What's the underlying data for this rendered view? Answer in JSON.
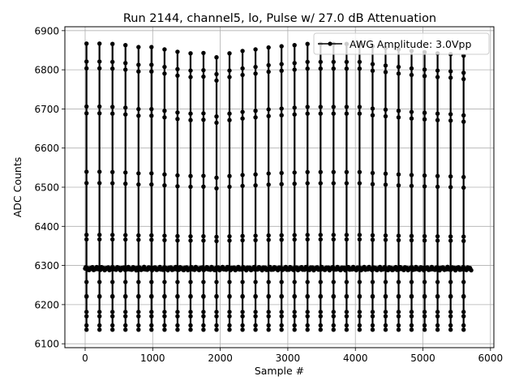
{
  "chart_data": {
    "type": "line",
    "title": "Run 2144, channel5, lo, Pulse w/ 27.0 dB Attenuation",
    "xlabel": "Sample #",
    "ylabel": "ADC Counts",
    "xlim": [
      -300,
      6050
    ],
    "ylim": [
      6090,
      6910
    ],
    "xticks": [
      0,
      1000,
      2000,
      3000,
      4000,
      5000,
      6000
    ],
    "yticks": [
      6100,
      6200,
      6300,
      6400,
      6500,
      6600,
      6700,
      6800,
      6900
    ],
    "grid": true,
    "legend_position": "top-right",
    "baseline": 6292,
    "pulse_period": 192.5,
    "pulses": [
      {
        "x": 20,
        "peak": 6867
      },
      {
        "x": 212,
        "peak": 6867
      },
      {
        "x": 405,
        "peak": 6866
      },
      {
        "x": 597,
        "peak": 6863
      },
      {
        "x": 790,
        "peak": 6858
      },
      {
        "x": 982,
        "peak": 6858
      },
      {
        "x": 1175,
        "peak": 6852
      },
      {
        "x": 1367,
        "peak": 6846
      },
      {
        "x": 1560,
        "peak": 6842
      },
      {
        "x": 1752,
        "peak": 6843
      },
      {
        "x": 1945,
        "peak": 6832
      },
      {
        "x": 2137,
        "peak": 6842
      },
      {
        "x": 2330,
        "peak": 6848
      },
      {
        "x": 2522,
        "peak": 6852
      },
      {
        "x": 2715,
        "peak": 6857
      },
      {
        "x": 2907,
        "peak": 6860
      },
      {
        "x": 3100,
        "peak": 6863
      },
      {
        "x": 3292,
        "peak": 6866
      },
      {
        "x": 3485,
        "peak": 6866
      },
      {
        "x": 3677,
        "peak": 6866
      },
      {
        "x": 3870,
        "peak": 6866
      },
      {
        "x": 4062,
        "peak": 6866
      },
      {
        "x": 4255,
        "peak": 6860
      },
      {
        "x": 4447,
        "peak": 6856
      },
      {
        "x": 4640,
        "peak": 6852
      },
      {
        "x": 4832,
        "peak": 6848
      },
      {
        "x": 5025,
        "peak": 6845
      },
      {
        "x": 5217,
        "peak": 6842
      },
      {
        "x": 5410,
        "peak": 6840
      },
      {
        "x": 5602,
        "peak": 6836
      }
    ],
    "undershoot_min": 6136,
    "series": [
      {
        "name": "AWG Amplitude: 3.0Vpp",
        "color": "#000000",
        "marker": "circle"
      }
    ]
  }
}
